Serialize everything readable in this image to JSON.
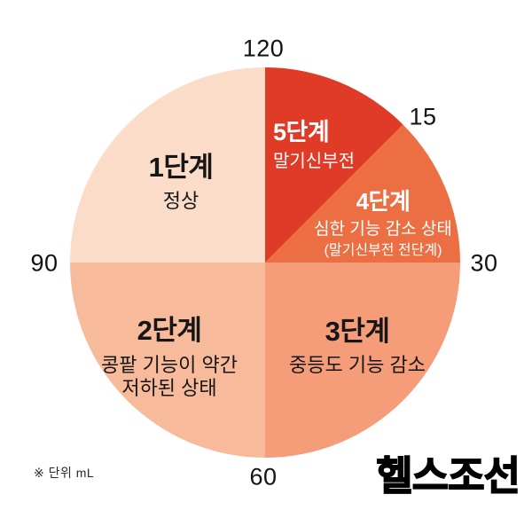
{
  "chart_data": {
    "type": "pie",
    "title": "",
    "unit_note": "※ 단위 mL",
    "legend_position": "none",
    "scale": {
      "min": 0,
      "max": 120,
      "start_angle_deg": 0,
      "direction": "clockwise",
      "unit": "mL"
    },
    "ticks": [
      {
        "label": "120",
        "value": 120
      },
      {
        "label": "15",
        "value": 15
      },
      {
        "label": "30",
        "value": 30
      },
      {
        "label": "60",
        "value": 60
      },
      {
        "label": "90",
        "value": 90
      }
    ],
    "segments": [
      {
        "name": "5단계",
        "desc": "말기신부전",
        "desc2": "",
        "range_start": 0,
        "range_end": 15,
        "value": 15,
        "color": "#e03b27",
        "text_color": "#ffffff"
      },
      {
        "name": "4단계",
        "desc": "심한 기능 감소 상태",
        "desc2": "(말기신부전 전단계)",
        "range_start": 15,
        "range_end": 30,
        "value": 15,
        "color": "#ec6f44",
        "text_color": "#ffffff"
      },
      {
        "name": "3단계",
        "desc": "중등도 기능 감소",
        "desc2": "",
        "range_start": 30,
        "range_end": 60,
        "value": 30,
        "color": "#f49d78",
        "text_color": "#161616"
      },
      {
        "name": "2단계",
        "desc": "콩팥 기능이 약간",
        "desc2": "저하된 상태",
        "range_start": 60,
        "range_end": 90,
        "value": 30,
        "color": "#f7bb9b",
        "text_color": "#161616"
      },
      {
        "name": "1단계",
        "desc": "정상",
        "desc2": "",
        "range_start": 90,
        "range_end": 120,
        "value": 30,
        "color": "#fbdcc8",
        "text_color": "#161616"
      }
    ]
  },
  "footer": {
    "logo": "헬스조선"
  }
}
